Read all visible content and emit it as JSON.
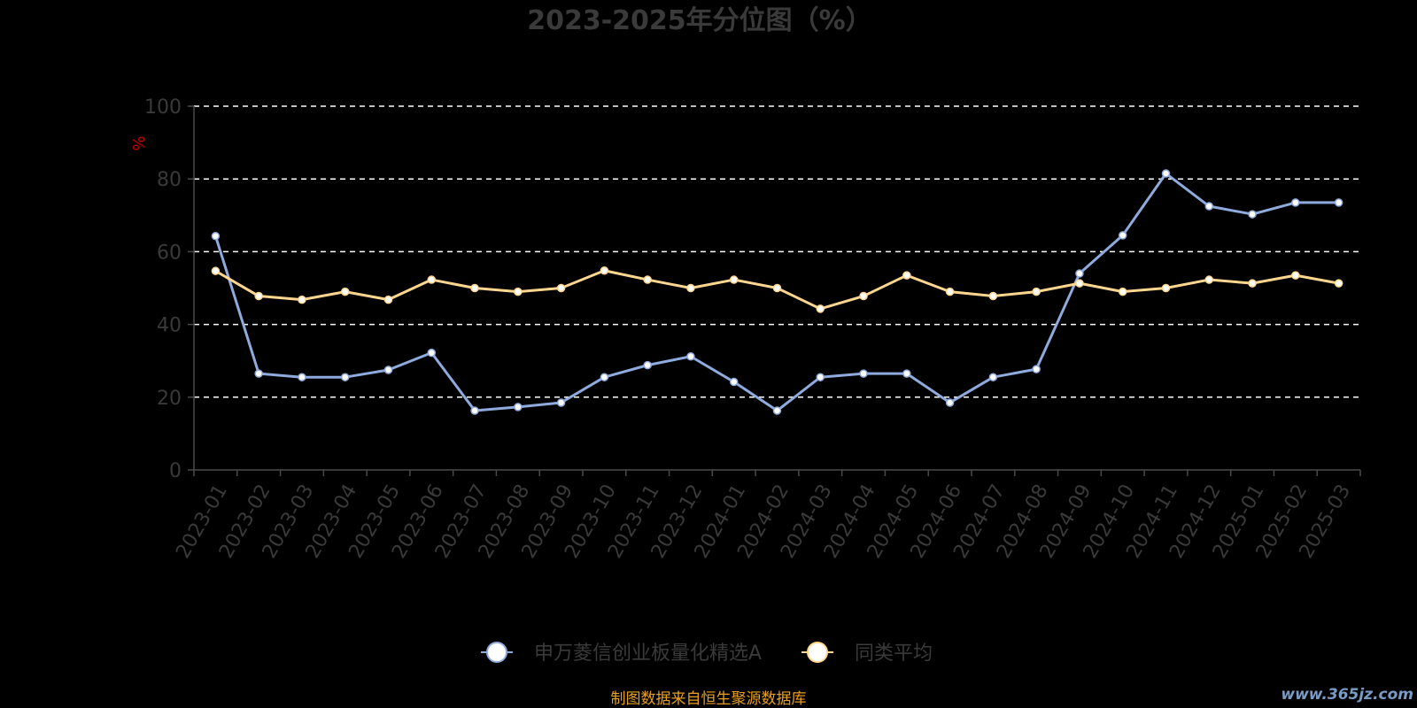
{
  "chart_data": {
    "type": "line",
    "title": "2023-2025年分位图（%）",
    "ylabel": "%",
    "ylim": [
      0,
      100
    ],
    "yticks": [
      "0",
      "20",
      "40",
      "60",
      "80",
      "100"
    ],
    "grid": true,
    "legend_position": "bottom",
    "categories": [
      "2023-01",
      "2023-02",
      "2023-03",
      "2023-04",
      "2023-05",
      "2023-06",
      "2023-07",
      "2023-08",
      "2023-09",
      "2023-10",
      "2023-11",
      "2023-12",
      "2024-01",
      "2024-02",
      "2024-03",
      "2024-04",
      "2024-05",
      "2024-06",
      "2024-07",
      "2024-08",
      "2024-09",
      "2024-10",
      "2024-11",
      "2024-12",
      "2025-01",
      "2025-02",
      "2025-03"
    ],
    "series": [
      {
        "name": "申万菱信创业板量化精选A",
        "color": "#8faadc",
        "values": [
          64.3,
          26.5,
          25.5,
          25.5,
          27.5,
          32.2,
          16.3,
          17.3,
          18.5,
          25.5,
          28.8,
          31.2,
          24.2,
          16.3,
          25.5,
          26.5,
          26.5,
          18.5,
          25.5,
          27.7,
          54.0,
          64.5,
          81.5,
          72.5,
          70.3,
          73.5,
          73.5
        ]
      },
      {
        "name": "同类平均",
        "color": "#ffd68f",
        "values": [
          54.7,
          47.8,
          46.8,
          49.0,
          46.8,
          52.3,
          50.0,
          49.0,
          50.0,
          54.8,
          52.3,
          50.0,
          52.3,
          50.0,
          44.3,
          47.8,
          53.5,
          49.0,
          47.8,
          49.0,
          51.3,
          49.0,
          50.0,
          52.3,
          51.3,
          53.5,
          51.3
        ]
      }
    ]
  },
  "source_note": "制图数据来自恒生聚源数据库",
  "watermark": "www.365jz.com",
  "colors": {
    "background": "#000000",
    "title": "#3a3a3a",
    "axis": "#4a4a4a",
    "grid": "#ffffff",
    "ylabel": "#cc0000",
    "source": "#e8a020",
    "watermark": "#7a9cc4"
  }
}
